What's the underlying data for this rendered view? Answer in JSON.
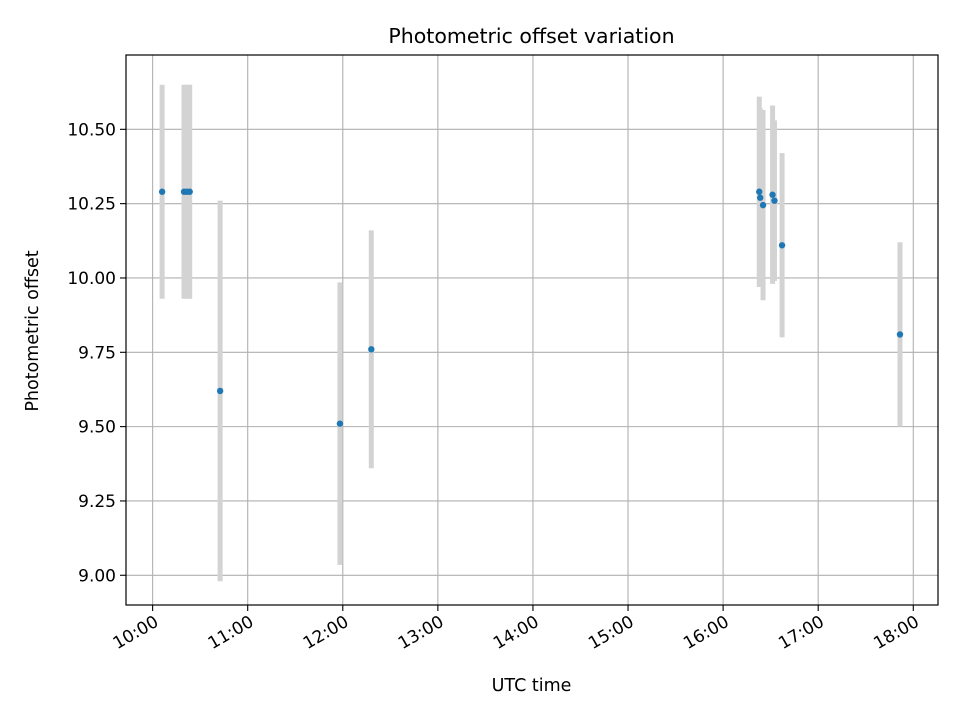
{
  "chart_data": {
    "type": "scatter",
    "title": "Photometric offset variation",
    "xlabel": "UTC time",
    "ylabel": "Photometric offset",
    "x_unit": "hours (UTC)",
    "xlim": [
      9.72,
      18.26
    ],
    "ylim": [
      8.9,
      10.75
    ],
    "grid": true,
    "x_ticks": [
      {
        "value": 10,
        "label": "10:00"
      },
      {
        "value": 11,
        "label": "11:00"
      },
      {
        "value": 12,
        "label": "12:00"
      },
      {
        "value": 13,
        "label": "13:00"
      },
      {
        "value": 14,
        "label": "14:00"
      },
      {
        "value": 15,
        "label": "15:00"
      },
      {
        "value": 16,
        "label": "16:00"
      },
      {
        "value": 17,
        "label": "17:00"
      },
      {
        "value": 18,
        "label": "18:00"
      }
    ],
    "y_ticks": [
      {
        "value": 9.0,
        "label": "9.00"
      },
      {
        "value": 9.25,
        "label": "9.25"
      },
      {
        "value": 9.5,
        "label": "9.50"
      },
      {
        "value": 9.75,
        "label": "9.75"
      },
      {
        "value": 10.0,
        "label": "10.00"
      },
      {
        "value": 10.25,
        "label": "10.25"
      },
      {
        "value": 10.5,
        "label": "10.50"
      }
    ],
    "point_color": "#1f77b4",
    "errorbar_color": "#d3d3d3",
    "points": [
      {
        "time": "10:06",
        "x": 10.1,
        "y": 10.29,
        "err": 0.36
      },
      {
        "time": "10:19",
        "x": 10.33,
        "y": 10.29,
        "err": 0.36
      },
      {
        "time": "10:21",
        "x": 10.36,
        "y": 10.29,
        "err": 0.36
      },
      {
        "time": "10:23",
        "x": 10.39,
        "y": 10.29,
        "err": 0.36
      },
      {
        "time": "10:42",
        "x": 10.71,
        "y": 9.62,
        "err": 0.64
      },
      {
        "time": "11:58",
        "x": 11.97,
        "y": 9.51,
        "err": 0.475
      },
      {
        "time": "12:18",
        "x": 12.3,
        "y": 9.76,
        "err": 0.4
      },
      {
        "time": "16:23",
        "x": 16.38,
        "y": 10.29,
        "err": 0.32
      },
      {
        "time": "16:23",
        "x": 16.39,
        "y": 10.27,
        "err": 0.3
      },
      {
        "time": "16:25",
        "x": 16.42,
        "y": 10.245,
        "err": 0.32
      },
      {
        "time": "16:31",
        "x": 16.52,
        "y": 10.28,
        "err": 0.3
      },
      {
        "time": "16:32",
        "x": 16.54,
        "y": 10.26,
        "err": 0.27
      },
      {
        "time": "16:37",
        "x": 16.62,
        "y": 10.11,
        "err": 0.31
      },
      {
        "time": "17:52",
        "x": 17.86,
        "y": 9.81,
        "err": 0.31
      }
    ]
  }
}
